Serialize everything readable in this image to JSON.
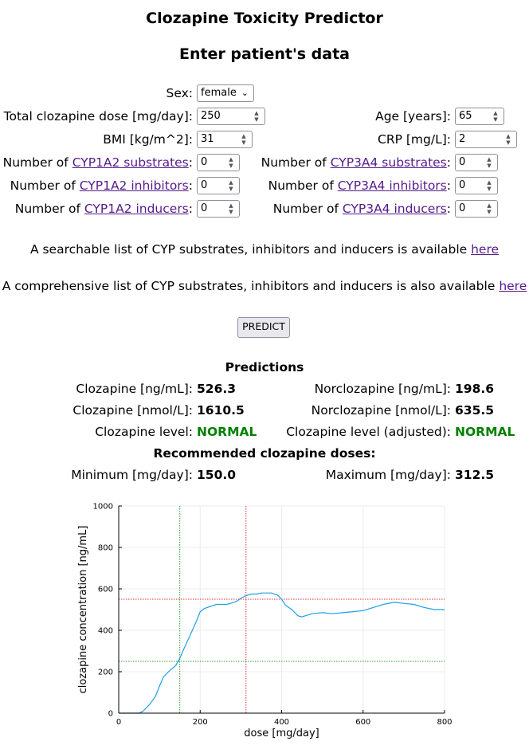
{
  "app": {
    "title": "Clozapine Toxicity Predictor",
    "subtitle": "Enter patient's data"
  },
  "form": {
    "sex_label": "Sex:",
    "sex_value": "female",
    "dose_label": "Total clozapine dose [mg/day]:",
    "dose_value": "250",
    "age_label": "Age [years]:",
    "age_value": "65",
    "bmi_label": "BMI [kg/m^2]:",
    "bmi_value": "31",
    "crp_label": "CRP [mg/L]:",
    "crp_value": "2",
    "number_of": "Number of",
    "cyp1a2_sub_link": "CYP1A2 substrates",
    "cyp1a2_sub_value": "0",
    "cyp3a4_sub_link": "CYP3A4 substrates",
    "cyp3a4_sub_value": "0",
    "cyp1a2_inh_link": "CYP1A2 inhibitors",
    "cyp1a2_inh_value": "0",
    "cyp3a4_inh_link": "CYP3A4 inhibitors",
    "cyp3a4_inh_value": "0",
    "cyp1a2_ind_link": "CYP1A2 inducers",
    "cyp1a2_ind_value": "0",
    "cyp3a4_ind_link": "CYP3A4 inducers",
    "cyp3a4_ind_value": "0",
    "colon": ":"
  },
  "info": {
    "searchable_text": "A searchable list of CYP substrates, inhibitors and inducers is available",
    "comprehensive_text": "A comprehensive list of CYP substrates, inhibitors and inducers is also available",
    "here_link": "here"
  },
  "predict_button": "PREDICT",
  "predictions": {
    "heading": "Predictions",
    "cloz_ngml_label": "Clozapine [ng/mL]:",
    "cloz_ngml_value": "526.3",
    "norcloz_ngml_label": "Norclozapine [ng/mL]:",
    "norcloz_ngml_value": "198.6",
    "cloz_nmol_label": "Clozapine [nmol/L]:",
    "cloz_nmol_value": "1610.5",
    "norcloz_nmol_label": "Norclozapine [nmol/L]:",
    "norcloz_nmol_value": "635.5",
    "level_label": "Clozapine level:",
    "level_value": "NORMAL",
    "level_adj_label": "Clozapine level (adjusted):",
    "level_adj_value": "NORMAL",
    "recommended_heading": "Recommended clozapine doses:",
    "min_label": "Minimum [mg/day]:",
    "min_value": "150.0",
    "max_label": "Maximum [mg/day]:",
    "max_value": "312.5"
  },
  "colors": {
    "level_normal": "#008000",
    "curve": "#1ea0e6",
    "threshold_high": "#e03030",
    "threshold_low": "#2a9d2a"
  },
  "chart_data": {
    "type": "line",
    "xlabel": "dose [mg/day]",
    "ylabel": "clozapine concentration [ng/mL]",
    "xlim": [
      0,
      800
    ],
    "ylim": [
      0,
      1000
    ],
    "xticks": [
      0,
      200,
      400,
      600,
      800
    ],
    "yticks": [
      0,
      200,
      400,
      600,
      800,
      1000
    ],
    "grid": true,
    "series": [
      {
        "x": [
          0,
          25,
          50,
          60,
          75,
          90,
          100,
          110,
          125,
          140,
          150,
          160,
          175,
          190,
          200,
          210,
          225,
          240,
          250,
          265,
          275,
          290,
          300,
          310,
          325,
          340,
          350,
          360,
          375,
          390,
          400,
          410,
          425,
          440,
          450,
          475,
          500,
          525,
          550,
          575,
          600,
          625,
          650,
          675,
          700,
          725,
          750,
          775,
          800
        ],
        "y": [
          0,
          0,
          0,
          10,
          40,
          80,
          130,
          175,
          205,
          230,
          265,
          310,
          375,
          440,
          490,
          505,
          515,
          525,
          525,
          525,
          530,
          540,
          555,
          565,
          575,
          575,
          580,
          580,
          580,
          570,
          550,
          520,
          500,
          470,
          465,
          480,
          485,
          480,
          485,
          490,
          495,
          510,
          525,
          535,
          530,
          525,
          510,
          500,
          500
        ]
      }
    ],
    "hlines": [
      550,
      250
    ],
    "vlines": [
      150,
      312.5
    ]
  }
}
